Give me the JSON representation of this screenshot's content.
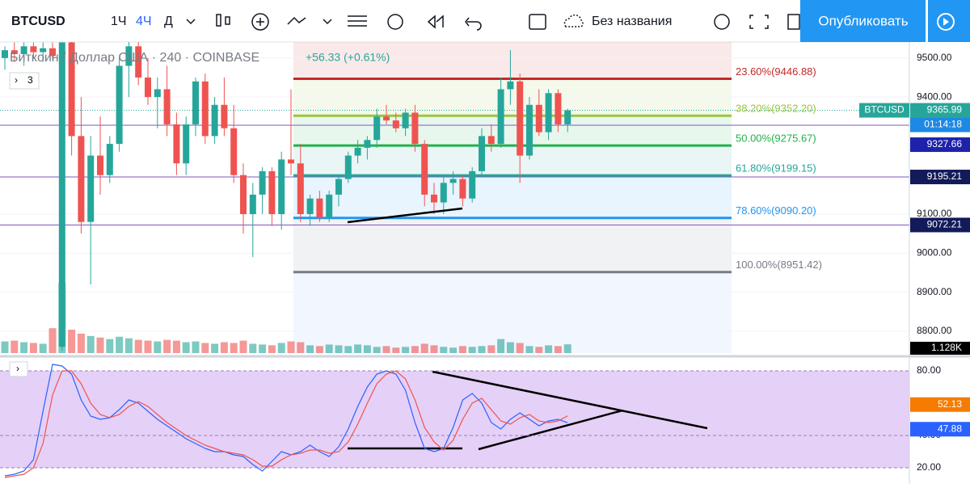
{
  "toolbar": {
    "symbol": "BTCUSD",
    "intervals": [
      "1Ч",
      "4Ч",
      "Д"
    ],
    "layout_name": "Без названия",
    "publish": "Опубликовать"
  },
  "legend": {
    "title": "Биткоин / Доллар США · 240 · COINBASE",
    "change": "+56.33 (+0.61%)",
    "indicators_count": "3"
  },
  "chart_data": {
    "type": "candlestick",
    "up_color": "#26a69a",
    "down_color": "#ef5350",
    "candles": [
      [
        9500,
        9530,
        9470,
        9520
      ],
      [
        9520,
        9540,
        9490,
        9510
      ],
      [
        9510,
        9540,
        9480,
        9530
      ],
      [
        9530,
        9540,
        9500,
        9515
      ],
      [
        9515,
        9540,
        9490,
        9525
      ],
      [
        9525,
        9540,
        9495,
        9505
      ],
      [
        8760,
        9541,
        8750,
        9540
      ],
      [
        9540,
        9541,
        9250,
        9300
      ],
      [
        9300,
        9400,
        9050,
        9080
      ],
      [
        9080,
        9300,
        8920,
        9250
      ],
      [
        9250,
        9350,
        9150,
        9200
      ],
      [
        9200,
        9300,
        9180,
        9280
      ],
      [
        9280,
        9500,
        9260,
        9480
      ],
      [
        9480,
        9541,
        9400,
        9530
      ],
      [
        9530,
        9541,
        9430,
        9450
      ],
      [
        9450,
        9500,
        9380,
        9400
      ],
      [
        9400,
        9450,
        9320,
        9420
      ],
      [
        9420,
        9480,
        9300,
        9330
      ],
      [
        9330,
        9360,
        9200,
        9230
      ],
      [
        9230,
        9350,
        9200,
        9330
      ],
      [
        9330,
        9450,
        9300,
        9440
      ],
      [
        9440,
        9460,
        9280,
        9300
      ],
      [
        9300,
        9400,
        9280,
        9380
      ],
      [
        9380,
        9450,
        9300,
        9320
      ],
      [
        9320,
        9380,
        9180,
        9200
      ],
      [
        9200,
        9230,
        9050,
        9100
      ],
      [
        9100,
        9180,
        8990,
        9150
      ],
      [
        9150,
        9220,
        9100,
        9210
      ],
      [
        9210,
        9220,
        9070,
        9100
      ],
      [
        9100,
        9260,
        9060,
        9240
      ],
      [
        9240,
        9420,
        9200,
        9230
      ],
      [
        9230,
        9280,
        9080,
        9100
      ],
      [
        9100,
        9150,
        9070,
        9140
      ],
      [
        9140,
        9160,
        9080,
        9090
      ],
      [
        9090,
        9160,
        9080,
        9150
      ],
      [
        9150,
        9200,
        9120,
        9190
      ],
      [
        9190,
        9260,
        9180,
        9250
      ],
      [
        9250,
        9290,
        9230,
        9270
      ],
      [
        9270,
        9300,
        9240,
        9290
      ],
      [
        9290,
        9370,
        9270,
        9350
      ],
      [
        9350,
        9380,
        9330,
        9340
      ],
      [
        9340,
        9360,
        9310,
        9320
      ],
      [
        9320,
        9370,
        9300,
        9360
      ],
      [
        9360,
        9380,
        9260,
        9280
      ],
      [
        9280,
        9290,
        9120,
        9150
      ],
      [
        9150,
        9180,
        9100,
        9130
      ],
      [
        9130,
        9200,
        9100,
        9180
      ],
      [
        9180,
        9210,
        9150,
        9190
      ],
      [
        9190,
        9200,
        9120,
        9140
      ],
      [
        9140,
        9220,
        9130,
        9210
      ],
      [
        9210,
        9320,
        9200,
        9300
      ],
      [
        9300,
        9330,
        9260,
        9280
      ],
      [
        9280,
        9450,
        9270,
        9420
      ],
      [
        9420,
        9520,
        9380,
        9440
      ],
      [
        9440,
        9460,
        9180,
        9250
      ],
      [
        9250,
        9400,
        9240,
        9380
      ],
      [
        9380,
        9420,
        9300,
        9310
      ],
      [
        9310,
        9420,
        9290,
        9410
      ],
      [
        9410,
        9420,
        9310,
        9330
      ],
      [
        9330,
        9370,
        9310,
        9366
      ]
    ],
    "volumes": [
      1.5,
      1.6,
      1.4,
      1.3,
      1.2,
      3.2,
      9,
      3,
      2.5,
      2.2,
      2,
      1.8,
      2.1,
      1.9,
      1.7,
      1.6,
      1.5,
      1.7,
      1.6,
      1.4,
      1.5,
      1.3,
      1.2,
      1.4,
      1.3,
      1.6,
      1.2,
      1.1,
      1.0,
      1.3,
      1.5,
      1.4,
      1.0,
      0.9,
      1.1,
      1.0,
      0.9,
      1.1,
      1.0,
      0.8,
      0.9,
      0.7,
      0.8,
      0.9,
      1.2,
      1.0,
      0.8,
      0.7,
      0.9,
      0.8,
      0.9,
      1.0,
      1.8,
      1.4,
      1.3,
      0.9,
      0.8,
      1.0,
      0.9,
      1.128
    ],
    "volume_ylim": [
      0,
      40
    ],
    "volume_label": "1.128K",
    "ylim": [
      8744,
      9541
    ],
    "yticks": [
      {
        "value": 9500,
        "label": "9500.00"
      },
      {
        "value": 9400,
        "label": "9400.00"
      },
      {
        "value": 9100,
        "label": "9100.00"
      },
      {
        "value": 9000,
        "label": "9000.00"
      },
      {
        "value": 8900,
        "label": "8900.00"
      },
      {
        "value": 8800,
        "label": "8800.00"
      }
    ],
    "fib_levels": [
      {
        "value": 9446.88,
        "label": "23.60%(9446.88)",
        "color": "#c62828"
      },
      {
        "value": 9352.2,
        "label": "38.20%(9352.20)",
        "color": "#9bc53d"
      },
      {
        "value": 9275.67,
        "label": "50.00%(9275.67)",
        "color": "#22b14c"
      },
      {
        "value": 9199.15,
        "label": "61.80%(9199.15)",
        "color": "#26a69a"
      },
      {
        "value": 9090.2,
        "label": "78.60%(9090.20)",
        "color": "#2196f3"
      },
      {
        "value": 8951.42,
        "label": "100.00%(8951.42)",
        "color": "#787b86"
      }
    ],
    "last_price": {
      "symbol": "BTCUSD",
      "value": 9365.99,
      "countdown": "01:14:18",
      "color": "#26a69a"
    },
    "price_lines": [
      {
        "value": 9327.66,
        "color": "#1e22aa"
      },
      {
        "value": 9195.21,
        "color": "#131a5a"
      },
      {
        "value": 9072.21,
        "color": "#131a5a"
      }
    ]
  },
  "oscillator": {
    "type": "line",
    "ylim": [
      11,
      86
    ],
    "yticks": [
      {
        "value": 80,
        "label": "80.00"
      },
      {
        "value": 40,
        "label": "40.00"
      },
      {
        "value": 20,
        "label": "20.00"
      }
    ],
    "series": [
      {
        "color": "#2962ff",
        "values": [
          15,
          16,
          18,
          25,
          55,
          84,
          83,
          78,
          62,
          52,
          50,
          51,
          56,
          62,
          60,
          55,
          50,
          46,
          42,
          38,
          35,
          32,
          30,
          30,
          28,
          27,
          22,
          18,
          24,
          30,
          28,
          30,
          34,
          30,
          27,
          33,
          44,
          58,
          70,
          78,
          80,
          78,
          68,
          48,
          32,
          30,
          32,
          45,
          62,
          66,
          60,
          48,
          44,
          50,
          54,
          50,
          46,
          49,
          50,
          47.88
        ]
      },
      {
        "color": "#ef5350",
        "values": [
          14,
          15,
          16,
          20,
          35,
          65,
          80,
          80,
          72,
          60,
          53,
          51,
          53,
          58,
          61,
          58,
          53,
          48,
          44,
          40,
          37,
          34,
          32,
          30,
          29,
          28,
          25,
          21,
          21,
          25,
          28,
          29,
          31,
          31,
          29,
          30,
          36,
          47,
          60,
          72,
          78,
          80,
          75,
          62,
          45,
          36,
          31,
          37,
          50,
          60,
          63,
          56,
          49,
          47,
          51,
          53,
          49,
          48,
          49,
          52.13
        ]
      }
    ],
    "tags": [
      {
        "value": 52.13,
        "color": "#f57c00"
      },
      {
        "value": 47.88,
        "color": "#2962ff"
      }
    ]
  }
}
